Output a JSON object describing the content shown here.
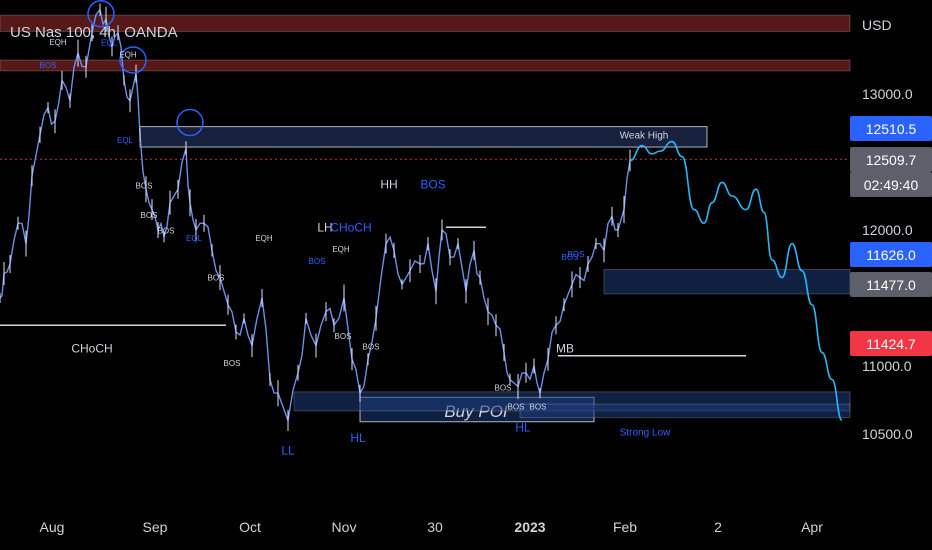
{
  "title": "US Nas 100, 4h, OANDA",
  "chart_data": {
    "type": "line",
    "instrument": "US Nas 100",
    "timeframe": "4h",
    "source": "OANDA",
    "currency": "USD",
    "y_axis": {
      "range": [
        10330,
        13600
      ],
      "tick_labels": [
        "13000.0",
        "12000.0",
        "11000.0",
        "10500.0"
      ],
      "tick_values": [
        13000,
        12000,
        11000,
        10500
      ]
    },
    "x_axis": {
      "tick_labels": [
        "Aug",
        "Sep",
        "Oct",
        "Nov",
        "30",
        "2023",
        "Feb",
        "2",
        "Apr"
      ]
    },
    "price_tags": [
      {
        "label": "12510.5",
        "value": 12510.5,
        "color": "#2962ff"
      },
      {
        "label": "12509.7",
        "value": 12509.7,
        "color": "#5d606b"
      },
      {
        "label": "02:49:40",
        "value": 12412,
        "color": "#5d606b"
      },
      {
        "label": "11626.0",
        "value": 11626.0,
        "color": "#2962ff"
      },
      {
        "label": "11477.0",
        "value": 11477.0,
        "color": "#5d606b"
      },
      {
        "label": "11424.7",
        "value": 11424.7,
        "color": "#f23645"
      }
    ],
    "price_path": [
      [
        0,
        11500
      ],
      [
        4,
        11680
      ],
      [
        10,
        11750
      ],
      [
        18,
        12050
      ],
      [
        26,
        11900
      ],
      [
        32,
        12400
      ],
      [
        40,
        12700
      ],
      [
        48,
        12900
      ],
      [
        55,
        12800
      ],
      [
        62,
        13100
      ],
      [
        70,
        12950
      ],
      [
        78,
        13300
      ],
      [
        86,
        13200
      ],
      [
        92,
        13450
      ],
      [
        100,
        13620
      ],
      [
        106,
        13550
      ],
      [
        112,
        13350
      ],
      [
        118,
        13450
      ],
      [
        124,
        13100
      ],
      [
        130,
        12950
      ],
      [
        136,
        13150
      ],
      [
        140,
        12700
      ],
      [
        146,
        12300
      ],
      [
        152,
        12150
      ],
      [
        158,
        12000
      ],
      [
        164,
        11950
      ],
      [
        170,
        12200
      ],
      [
        178,
        12300
      ],
      [
        186,
        12600
      ],
      [
        190,
        12200
      ],
      [
        196,
        12000
      ],
      [
        204,
        12050
      ],
      [
        212,
        11850
      ],
      [
        220,
        11650
      ],
      [
        228,
        11450
      ],
      [
        236,
        11250
      ],
      [
        244,
        11350
      ],
      [
        252,
        11150
      ],
      [
        262,
        11500
      ],
      [
        270,
        10900
      ],
      [
        278,
        10800
      ],
      [
        288,
        10600
      ],
      [
        298,
        10950
      ],
      [
        306,
        11350
      ],
      [
        316,
        11150
      ],
      [
        326,
        11400
      ],
      [
        334,
        11300
      ],
      [
        344,
        11500
      ],
      [
        352,
        11050
      ],
      [
        360,
        10800
      ],
      [
        368,
        11050
      ],
      [
        376,
        11350
      ],
      [
        386,
        11900
      ],
      [
        394,
        11850
      ],
      [
        402,
        11600
      ],
      [
        410,
        11700
      ],
      [
        420,
        11750
      ],
      [
        428,
        11900
      ],
      [
        436,
        11550
      ],
      [
        442,
        12000
      ],
      [
        450,
        11800
      ],
      [
        458,
        11900
      ],
      [
        466,
        11550
      ],
      [
        474,
        11850
      ],
      [
        480,
        11650
      ],
      [
        488,
        11400
      ],
      [
        496,
        11300
      ],
      [
        504,
        11100
      ],
      [
        510,
        10900
      ],
      [
        518,
        10850
      ],
      [
        526,
        10950
      ],
      [
        534,
        11000
      ],
      [
        540,
        10800
      ],
      [
        548,
        11050
      ],
      [
        556,
        11300
      ],
      [
        564,
        11450
      ],
      [
        572,
        11600
      ],
      [
        580,
        11650
      ],
      [
        588,
        11750
      ],
      [
        596,
        11900
      ],
      [
        604,
        11850
      ],
      [
        612,
        12100
      ],
      [
        618,
        12000
      ],
      [
        624,
        12150
      ],
      [
        630,
        12510
      ]
    ],
    "projection_path": [
      [
        630,
        12510
      ],
      [
        642,
        12620
      ],
      [
        652,
        12560
      ],
      [
        660,
        12580
      ],
      [
        672,
        12650
      ],
      [
        682,
        12540
      ],
      [
        694,
        12150
      ],
      [
        704,
        12050
      ],
      [
        712,
        12200
      ],
      [
        722,
        12350
      ],
      [
        732,
        12250
      ],
      [
        746,
        12150
      ],
      [
        756,
        12300
      ],
      [
        764,
        12130
      ],
      [
        772,
        11780
      ],
      [
        782,
        11650
      ],
      [
        792,
        11900
      ],
      [
        802,
        11700
      ],
      [
        812,
        11450
      ],
      [
        822,
        11100
      ],
      [
        832,
        10900
      ],
      [
        842,
        10600
      ]
    ],
    "zones": [
      {
        "label": "",
        "x0": 0,
        "x1": 850,
        "top": 13580,
        "bottom": 13460,
        "color": "#9c2c2c"
      },
      {
        "label": "",
        "x0": 0,
        "x1": 850,
        "top": 13250,
        "bottom": 13170,
        "color": "#9c2c2c"
      },
      {
        "label": "Weak High",
        "x0": 140,
        "x1": 707,
        "top": 12760,
        "bottom": 12610,
        "color": "#2a3a6e"
      },
      {
        "label": "",
        "x0": 604,
        "x1": 850,
        "top": 11710,
        "bottom": 11530,
        "color": "#1e3a7a"
      },
      {
        "label": "Buy  POI",
        "x0": 360,
        "x1": 594,
        "top": 10770,
        "bottom": 10590,
        "color": "#1e3a7a"
      },
      {
        "label": "",
        "x0": 294,
        "x1": 850,
        "top": 10810,
        "bottom": 10670,
        "color": "#1e3a7a"
      },
      {
        "label": "Strong Low",
        "x0": 520,
        "x1": 850,
        "top": 10720,
        "bottom": 10620,
        "color": "#1e3a7a"
      }
    ],
    "levels": [
      {
        "x0": 0,
        "x1": 226,
        "value": 11300,
        "color": "#d1d4dc"
      },
      {
        "x0": 558,
        "x1": 746,
        "value": 11075,
        "color": "#d1d4dc"
      },
      {
        "x0": 0,
        "x1": 850,
        "value": 12520,
        "color": "#c0393b"
      },
      {
        "x0": 446,
        "x1": 486,
        "value": 12020,
        "color": "#d1d4dc"
      }
    ],
    "markers": [
      {
        "x": 101,
        "value": 13590
      },
      {
        "x": 133,
        "value": 13250
      },
      {
        "x": 190,
        "value": 12790
      }
    ],
    "annotations": [
      {
        "text": "EQH",
        "x": 58,
        "value": 13360,
        "color": "#d1d4dc"
      },
      {
        "text": "BOS",
        "x": 48,
        "value": 13190,
        "color": "#2962ff"
      },
      {
        "text": "EQL",
        "x": 109,
        "value": 13355,
        "color": "#2962ff"
      },
      {
        "text": "EQH",
        "x": 128,
        "value": 13270,
        "color": "#d1d4dc"
      },
      {
        "text": "EQL",
        "x": 125,
        "value": 12640,
        "color": "#2962ff"
      },
      {
        "text": "BOS",
        "x": 144,
        "value": 12305,
        "color": "#d1d4dc"
      },
      {
        "text": "BOS",
        "x": 149,
        "value": 12090,
        "color": "#d1d4dc"
      },
      {
        "text": "BOS",
        "x": 166,
        "value": 11975,
        "color": "#d1d4dc"
      },
      {
        "text": "EQL",
        "x": 194,
        "value": 11920,
        "color": "#2962ff"
      },
      {
        "text": "EQH",
        "x": 264,
        "value": 11920,
        "color": "#d1d4dc"
      },
      {
        "text": "BOS",
        "x": 216,
        "value": 11630,
        "color": "#d1d4dc"
      },
      {
        "text": "BOS",
        "x": 232,
        "value": 11000,
        "color": "#d1d4dc"
      },
      {
        "text": "CHoCH",
        "x": 92,
        "value": 11100,
        "color": "#d1d4dc"
      },
      {
        "text": "HH",
        "x": 389,
        "value": 12305,
        "color": "#d1d4dc"
      },
      {
        "text": "BOS",
        "x": 433,
        "value": 12305,
        "color": "#2962ff"
      },
      {
        "text": "LH",
        "x": 325,
        "value": 11990,
        "color": "#d1d4dc"
      },
      {
        "text": "CHoCH",
        "x": 351,
        "value": 11990,
        "color": "#2962ff"
      },
      {
        "text": "EQH",
        "x": 341,
        "value": 11840,
        "color": "#d1d4dc"
      },
      {
        "text": "BOS",
        "x": 317,
        "value": 11750,
        "color": "#2962ff"
      },
      {
        "text": "BOS",
        "x": 343,
        "value": 11200,
        "color": "#d1d4dc"
      },
      {
        "text": "BOS",
        "x": 371,
        "value": 11120,
        "color": "#d1d4dc"
      },
      {
        "text": "LL",
        "x": 288,
        "value": 10350,
        "color": "#2962ff"
      },
      {
        "text": "HL",
        "x": 358,
        "value": 10440,
        "color": "#2962ff"
      },
      {
        "text": "HL",
        "x": 523,
        "value": 10520,
        "color": "#2962ff"
      },
      {
        "text": "BOS",
        "x": 570,
        "value": 11780,
        "color": "#2962ff"
      },
      {
        "text": "BOS",
        "x": 576,
        "value": 11800,
        "color": "#2962ff"
      },
      {
        "text": "MB",
        "x": 565,
        "value": 11100,
        "color": "#d1d4dc"
      },
      {
        "text": "BOS",
        "x": 503,
        "value": 10820,
        "color": "#d1d4dc"
      },
      {
        "text": "BOS",
        "x": 516,
        "value": 10680,
        "color": "#d1d4dc"
      },
      {
        "text": "BOS",
        "x": 538,
        "value": 10680,
        "color": "#d1d4dc"
      }
    ]
  }
}
